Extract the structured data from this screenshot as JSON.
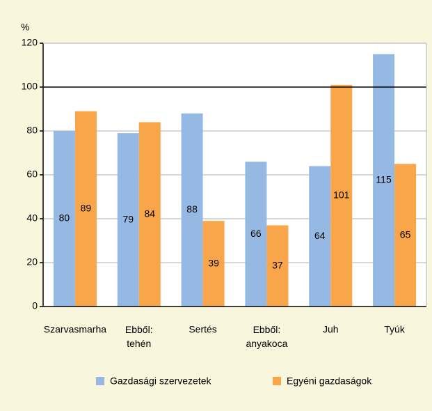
{
  "chart_data": {
    "type": "bar",
    "y_label": "%",
    "categories": [
      "Szarvasmarha",
      "Ebből: tehén",
      "Sertés",
      "Ebből: anyakoca",
      "Juh",
      "Tyúk"
    ],
    "series": [
      {
        "name": "Gazdasági szervezetek",
        "color": "#95b9e3",
        "values": [
          80,
          79,
          88,
          66,
          64,
          115
        ]
      },
      {
        "name": "Egyéni gazdaságok",
        "color": "#f9a54a",
        "values": [
          89,
          84,
          39,
          37,
          101,
          65
        ]
      }
    ],
    "ylim": [
      0,
      120
    ],
    "yticks": [
      0,
      20,
      40,
      60,
      80,
      100,
      120
    ],
    "grid": true,
    "reference_line": 100,
    "legend": "bottom"
  }
}
